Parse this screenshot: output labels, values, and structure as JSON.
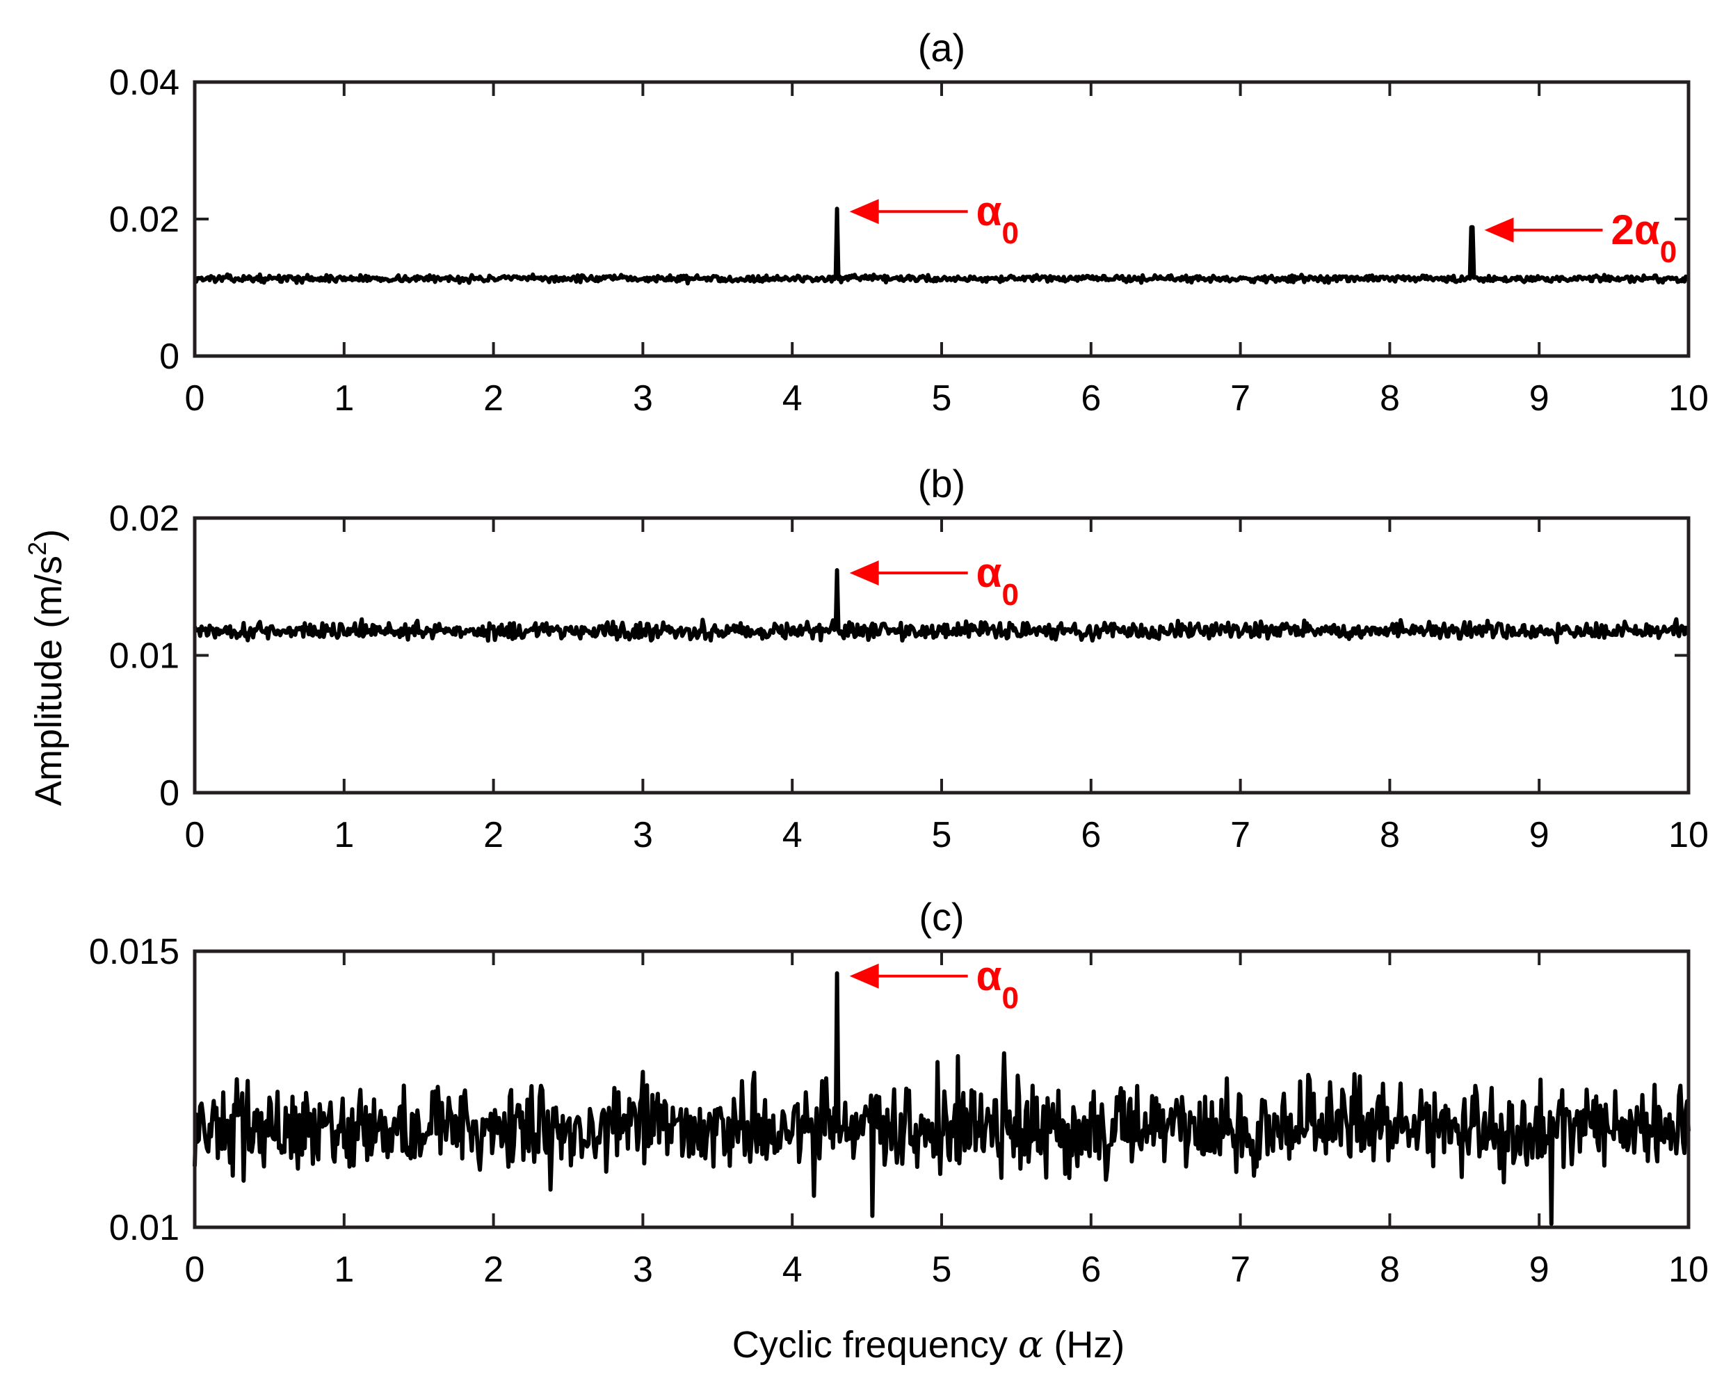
{
  "chart_data": [
    {
      "type": "line",
      "title": "(a)",
      "xlim": [
        0,
        10
      ],
      "ylim": [
        0,
        0.04
      ],
      "xticks": [
        0,
        1,
        2,
        3,
        4,
        5,
        6,
        7,
        8,
        9,
        10
      ],
      "yticks": [
        0,
        0.02,
        0.04
      ],
      "ytick_labels": [
        "0",
        "0.02",
        "0.04"
      ],
      "baseline": 0.0113,
      "noise": 0.0004,
      "peaks": [
        {
          "x": 4.3,
          "y": 0.0215
        },
        {
          "x": 8.55,
          "y": 0.0188
        }
      ],
      "annotations": [
        {
          "symbol": "α",
          "prefix": "",
          "sub": "0",
          "x": 4.3,
          "y": 0.0215
        },
        {
          "symbol": "α",
          "prefix": "2",
          "sub": "0",
          "x": 8.55,
          "y": 0.0188
        }
      ],
      "grid": false
    },
    {
      "type": "line",
      "title": "(b)",
      "xlim": [
        0,
        10
      ],
      "ylim": [
        0,
        0.02
      ],
      "xticks": [
        0,
        1,
        2,
        3,
        4,
        5,
        6,
        7,
        8,
        9,
        10
      ],
      "yticks": [
        0,
        0.01,
        0.02
      ],
      "ytick_labels": [
        "0",
        "0.01",
        "0.02"
      ],
      "baseline": 0.0118,
      "noise": 0.0005,
      "peaks": [
        {
          "x": 4.3,
          "y": 0.0162
        }
      ],
      "annotations": [
        {
          "symbol": "α",
          "prefix": "",
          "sub": "0",
          "x": 4.3,
          "y": 0.0162
        }
      ],
      "grid": false
    },
    {
      "type": "line",
      "title": "(c)",
      "xlim": [
        0,
        10
      ],
      "ylim": [
        0.01,
        0.015
      ],
      "xticks": [
        0,
        1,
        2,
        3,
        4,
        5,
        6,
        7,
        8,
        9,
        10
      ],
      "yticks": [
        0.01,
        0.015
      ],
      "ytick_labels": [
        "0.01",
        "0.015"
      ],
      "baseline": 0.0118,
      "noise": 0.0006,
      "peaks": [
        {
          "x": 4.3,
          "y": 0.0146
        }
      ],
      "annotations": [
        {
          "symbol": "α",
          "prefix": "",
          "sub": "0",
          "x": 4.3,
          "y": 0.0146
        }
      ],
      "grid": false
    }
  ],
  "ylabel_main": "Amplitude (m/s",
  "ylabel_sup": "2",
  "ylabel_close": ")",
  "xlabel_main": "Cyclic frequency ",
  "xlabel_symbol": "α",
  "xlabel_unit": " (Hz)",
  "colors": {
    "series": "#000000",
    "annotation": "#ff0000",
    "axes": "#231f20"
  }
}
